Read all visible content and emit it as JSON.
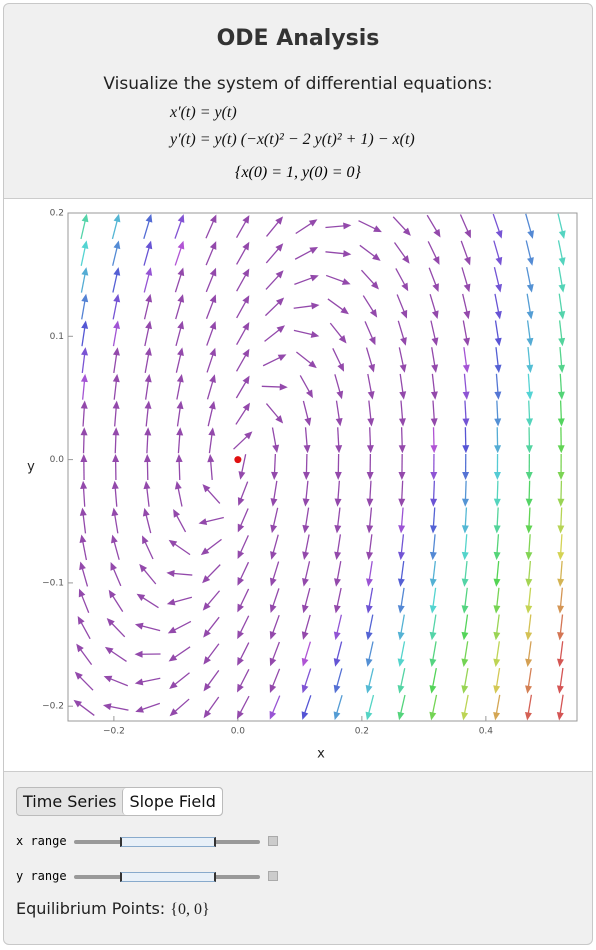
{
  "header": {
    "title": "ODE Analysis",
    "subtitle": "Visualize the system of differential equations:",
    "equations": [
      "x′(t) = y(t)",
      "y′(t) = y(t) (−x(t)² − 2 y(t)² + 1) − x(t)"
    ],
    "initial": "{x(0) = 1, y(0) = 0}"
  },
  "chart_data": {
    "type": "vector-field",
    "x_label": "x",
    "y_label": "y",
    "xlim": [
      -0.274,
      0.547
    ],
    "ylim": [
      -0.212,
      0.2
    ],
    "xticks": [
      {
        "value": -0.2,
        "label": "−0.2"
      },
      {
        "value": 0,
        "label": "0.0"
      },
      0.2,
      0.4
    ],
    "yticks": [
      {
        "value": -0.2,
        "label": "−0.2"
      },
      {
        "value": -0.1,
        "label": "−0.1"
      },
      {
        "value": 0,
        "label": "0.0"
      },
      0.1,
      0.2
    ],
    "points": {
      "x": [
        0
      ],
      "y": [
        0
      ],
      "color": "#e01010"
    }
  },
  "controls": {
    "tabs": [
      "Time Series",
      "Slope Field"
    ],
    "sliders": [
      "x range",
      "y range"
    ],
    "equilibrium_label": "Equilibrium Points:",
    "equilibrium_value": "{0, 0}"
  }
}
